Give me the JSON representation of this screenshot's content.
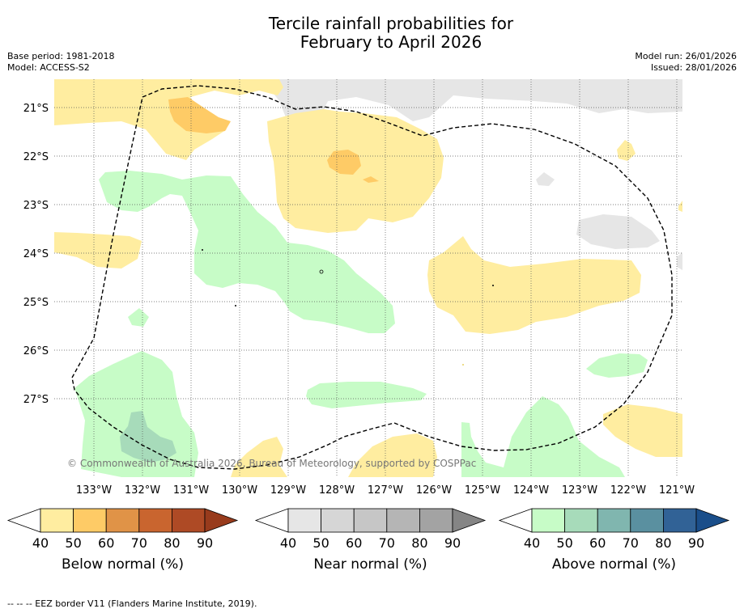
{
  "title_line1": "Tercile rainfall probabilities for",
  "title_line2": "February to April 2026",
  "base_period": "Base period: 1981-2018",
  "model": "Model: ACCESS-S2",
  "model_run": "Model run: 26/01/2026",
  "issued": "Issued: 28/01/2026",
  "copyright": "© Commonwealth of Australia 2026, Bureau of Meteorology, supported by COSPPac",
  "lat_labels": [
    "21°S",
    "22°S",
    "23°S",
    "24°S",
    "25°S",
    "26°S",
    "27°S"
  ],
  "lon_labels": [
    "133°W",
    "132°W",
    "131°W",
    "130°W",
    "129°W",
    "128°W",
    "127°W",
    "126°W",
    "125°W",
    "124°W",
    "123°W",
    "122°W",
    "121°W"
  ],
  "colorbars": [
    {
      "label": "Below normal (%)",
      "ticks": [
        "40",
        "50",
        "60",
        "70",
        "80",
        "90"
      ],
      "colors": [
        "#ffeda0",
        "#fecb66",
        "#e09347",
        "#c9652f",
        "#ae4a25"
      ],
      "extend_color": "#983b1c"
    },
    {
      "label": "Near normal (%)",
      "ticks": [
        "40",
        "50",
        "60",
        "70",
        "80",
        "90"
      ],
      "colors": [
        "#e6e6e6",
        "#d6d6d6",
        "#c6c6c6",
        "#b5b5b5",
        "#a3a3a3"
      ],
      "extend_color": "#858585"
    },
    {
      "label": "Above normal (%)",
      "ticks": [
        "40",
        "50",
        "60",
        "70",
        "80",
        "90"
      ],
      "colors": [
        "#c7fcc7",
        "#a7dbba",
        "#80b6af",
        "#5a90a0",
        "#316296"
      ],
      "extend_color": "#1a4e8a"
    }
  ],
  "footnote": "--  --  -- EEZ border V11 (Flanders Marine Institute, 2019).",
  "colors": {
    "below_40": "#ffeda0",
    "below_50": "#fecb66",
    "near_40": "#e6e6e6",
    "above_40": "#c7fcc7",
    "above_50": "#a7dbba"
  }
}
